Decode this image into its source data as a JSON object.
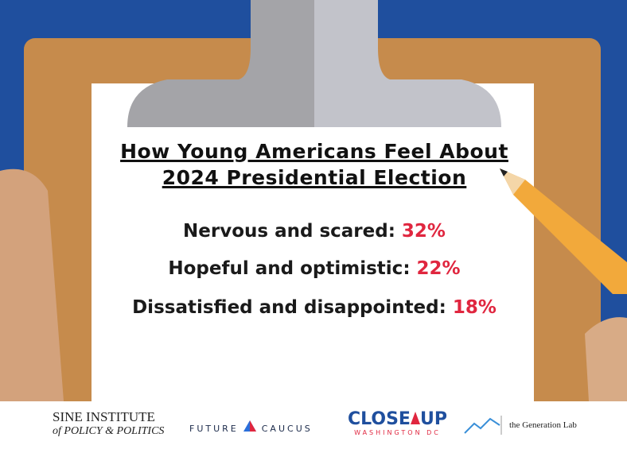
{
  "title": {
    "lines": [
      "How Young Americans Feel About",
      "2024 Presidential Election"
    ]
  },
  "items": [
    {
      "label": "Nervous and scared:",
      "value": "32%"
    },
    {
      "label": "Hopeful and optimistic:",
      "value": "22%"
    },
    {
      "label": "Dissatisfied and disappointed:",
      "value": "18%"
    }
  ],
  "logos": {
    "sine": {
      "line1": "SINE INSTITUTE",
      "line2": "of POLICY & POLITICS"
    },
    "future_caucus": {
      "left": "FUTURE",
      "right": "CAUCUS"
    },
    "close_up": {
      "left": "CLOSE",
      "right": "UP",
      "sub": "WASHINGTON DC"
    },
    "generation_lab": "the Generation Lab"
  }
}
